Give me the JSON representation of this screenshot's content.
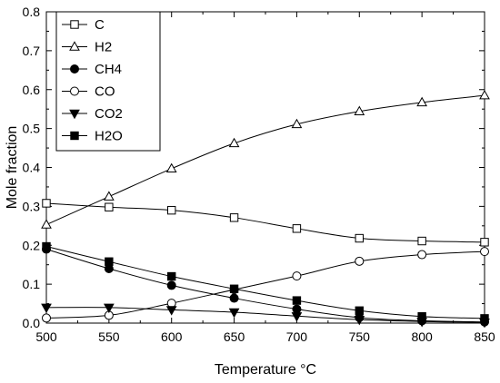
{
  "chart_data": {
    "type": "line",
    "xlabel": "Temperature °C",
    "ylabel": "Mole fraction",
    "xlim": [
      500,
      850
    ],
    "ylim": [
      0.0,
      0.8
    ],
    "xticks": [
      500,
      550,
      600,
      650,
      700,
      750,
      800,
      850
    ],
    "xtick_labels": [
      "500",
      "550",
      "600",
      "650",
      "700",
      "750",
      "800",
      "850"
    ],
    "yticks": [
      0.0,
      0.1,
      0.2,
      0.3,
      0.4,
      0.5,
      0.6,
      0.7,
      0.8
    ],
    "ytick_labels": [
      "0.0",
      "0.1",
      "0.2",
      "0.3",
      "0.4",
      "0.5",
      "0.6",
      "0.7",
      "0.8"
    ],
    "grid": false,
    "legend_position": "top-left",
    "x": [
      500,
      550,
      600,
      650,
      700,
      750,
      800,
      850
    ],
    "series": [
      {
        "name": "C",
        "marker": "open-square",
        "color": "#000000",
        "values": [
          0.308,
          0.298,
          0.29,
          0.271,
          0.243,
          0.218,
          0.211,
          0.208
        ]
      },
      {
        "name": "H2",
        "marker": "open-triangle-up",
        "color": "#000000",
        "values": [
          0.253,
          0.325,
          0.397,
          0.462,
          0.511,
          0.544,
          0.567,
          0.585
        ]
      },
      {
        "name": "CH4",
        "marker": "filled-circle",
        "color": "#000000",
        "values": [
          0.19,
          0.14,
          0.097,
          0.064,
          0.036,
          0.014,
          0.006,
          0.003
        ]
      },
      {
        "name": "CO",
        "marker": "open-circle",
        "color": "#000000",
        "values": [
          0.013,
          0.02,
          0.051,
          0.086,
          0.121,
          0.159,
          0.176,
          0.184
        ]
      },
      {
        "name": "CO2",
        "marker": "filled-triangle-down",
        "color": "#000000",
        "values": [
          0.04,
          0.04,
          0.034,
          0.028,
          0.018,
          0.009,
          0.004,
          0.002
        ]
      },
      {
        "name": "H2O",
        "marker": "filled-square",
        "color": "#000000",
        "values": [
          0.197,
          0.158,
          0.12,
          0.088,
          0.058,
          0.032,
          0.017,
          0.012
        ]
      }
    ]
  }
}
